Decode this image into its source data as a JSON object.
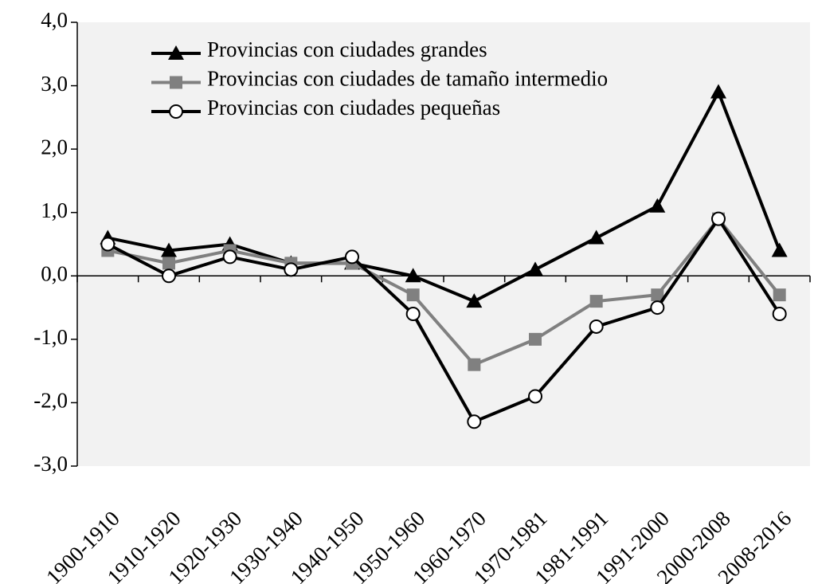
{
  "chart_data": {
    "type": "line",
    "categories": [
      "1900-1910",
      "1910-1920",
      "1920-1930",
      "1930-1940",
      "1940-1950",
      "1950-1960",
      "1960-1970",
      "1970-1981",
      "1981-1991",
      "1991-2000",
      "2000-2008",
      "2008-2016"
    ],
    "series": [
      {
        "name": "Provincias con ciudades grandes",
        "color": "#000000",
        "marker": "triangle",
        "values": [
          0.6,
          0.4,
          0.5,
          0.2,
          0.2,
          0.0,
          -0.4,
          0.1,
          0.6,
          1.1,
          2.9,
          0.4
        ]
      },
      {
        "name": "Provincias con ciudades de tamaño intermedio",
        "color": "#808080",
        "marker": "square",
        "values": [
          0.4,
          0.2,
          0.4,
          0.2,
          0.2,
          -0.3,
          -1.4,
          -1.0,
          -0.4,
          -0.3,
          0.9,
          -0.3
        ]
      },
      {
        "name": "Provincias con ciudades pequeñas",
        "color": "#000000",
        "marker": "circle",
        "values": [
          0.5,
          0.0,
          0.3,
          0.1,
          0.3,
          -0.6,
          -2.3,
          -1.9,
          -0.8,
          -0.5,
          0.9,
          -0.6
        ]
      }
    ],
    "ylim": [
      -3,
      4
    ],
    "yticks": [
      {
        "value": -3,
        "label": "-3,0"
      },
      {
        "value": -2,
        "label": "-2,0"
      },
      {
        "value": -1,
        "label": "-1,0"
      },
      {
        "value": 0,
        "label": "0,0"
      },
      {
        "value": 1,
        "label": "1,0"
      },
      {
        "value": 2,
        "label": "2,0"
      },
      {
        "value": 3,
        "label": "3,0"
      },
      {
        "value": 4,
        "label": "4,0"
      }
    ],
    "legend": "upper left",
    "grid": false
  }
}
